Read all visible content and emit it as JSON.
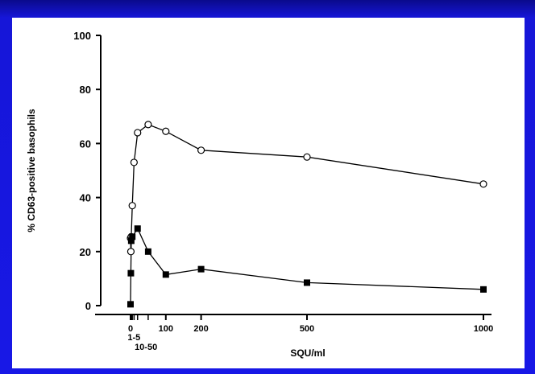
{
  "chart_data": {
    "type": "line",
    "title": "",
    "xlabel": "SQU/ml",
    "ylabel": "% CD63-positive basophils",
    "ylim": [
      0,
      100
    ],
    "xlim": [
      0,
      1000
    ],
    "yticks": [
      "0",
      "20",
      "40",
      "60",
      "80",
      "100"
    ],
    "xticks": [
      {
        "value": 0,
        "label": "0"
      },
      {
        "value": 100,
        "label": "100"
      },
      {
        "value": 200,
        "label": "200"
      },
      {
        "value": 500,
        "label": "500"
      },
      {
        "value": 1000,
        "label": "1000"
      }
    ],
    "xtick_sub_labels": [
      {
        "value": 3,
        "label": "1-5"
      },
      {
        "value": 30,
        "label": "10-50"
      }
    ],
    "grid": false,
    "series": [
      {
        "marker": "open-circle",
        "color": "#000000",
        "points": [
          [
            0,
            25
          ],
          [
            1,
            20
          ],
          [
            2,
            25.5
          ],
          [
            5,
            37
          ],
          [
            10,
            53
          ],
          [
            20,
            64
          ],
          [
            50,
            67
          ],
          [
            100,
            64.5
          ],
          [
            200,
            57.5
          ],
          [
            500,
            55
          ],
          [
            1000,
            45
          ]
        ]
      },
      {
        "marker": "filled-square",
        "color": "#000000",
        "points": [
          [
            0,
            0.5
          ],
          [
            1,
            12
          ],
          [
            2,
            24
          ],
          [
            5,
            25.5
          ],
          [
            20,
            28.5
          ],
          [
            50,
            20
          ],
          [
            100,
            11.5
          ],
          [
            200,
            13.5
          ],
          [
            500,
            8.5
          ],
          [
            1000,
            6
          ]
        ]
      }
    ]
  }
}
